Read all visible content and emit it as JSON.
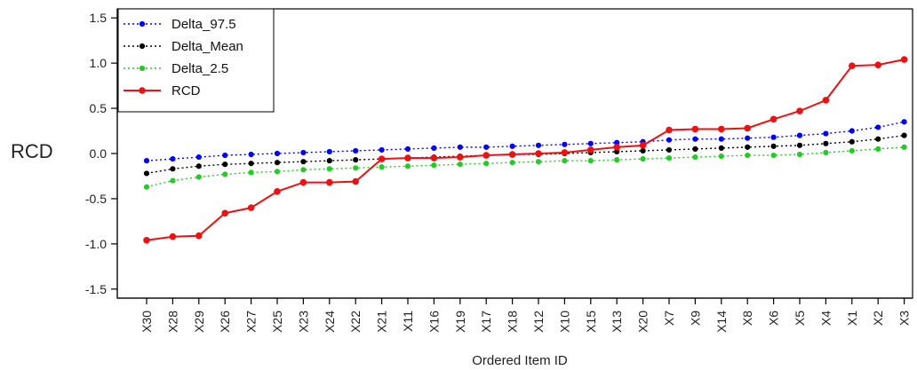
{
  "chart_data": {
    "type": "line",
    "xlabel": "Ordered Item ID",
    "ylabel": "RCD",
    "ylim": [
      -1.6,
      1.6
    ],
    "yticks": [
      -1.5,
      -1.0,
      -0.5,
      0.0,
      0.5,
      1.0,
      1.5
    ],
    "ytick_labels": [
      "-1.5",
      "-1.0",
      "-0.5",
      "0.0",
      "0.5",
      "1.0",
      "1.5"
    ],
    "grid": false,
    "legend_position": "top-left",
    "categories": [
      "X30",
      "X28",
      "X29",
      "X26",
      "X27",
      "X25",
      "X23",
      "X24",
      "X22",
      "X21",
      "X11",
      "X16",
      "X19",
      "X17",
      "X18",
      "X12",
      "X10",
      "X15",
      "X13",
      "X20",
      "X7",
      "X9",
      "X14",
      "X8",
      "X6",
      "X5",
      "X4",
      "X1",
      "X2",
      "X3"
    ],
    "series": [
      {
        "name": "Delta_97.5",
        "color": "#0000ff",
        "style": "dotted",
        "values": [
          -0.08,
          -0.06,
          -0.04,
          -0.02,
          -0.01,
          0.0,
          0.01,
          0.02,
          0.03,
          0.04,
          0.05,
          0.06,
          0.07,
          0.07,
          0.08,
          0.09,
          0.1,
          0.11,
          0.12,
          0.13,
          0.15,
          0.16,
          0.16,
          0.17,
          0.18,
          0.2,
          0.22,
          0.25,
          0.29,
          0.35
        ]
      },
      {
        "name": "Delta_Mean",
        "color": "#000000",
        "style": "dotted",
        "values": [
          -0.22,
          -0.17,
          -0.14,
          -0.12,
          -0.11,
          -0.1,
          -0.09,
          -0.08,
          -0.07,
          -0.06,
          -0.05,
          -0.04,
          -0.03,
          -0.02,
          -0.01,
          -0.01,
          0.0,
          0.01,
          0.02,
          0.03,
          0.04,
          0.05,
          0.06,
          0.07,
          0.08,
          0.09,
          0.11,
          0.13,
          0.16,
          0.2
        ]
      },
      {
        "name": "Delta_2.5",
        "color": "#22cc22",
        "style": "dotted",
        "values": [
          -0.37,
          -0.3,
          -0.26,
          -0.23,
          -0.21,
          -0.2,
          -0.18,
          -0.17,
          -0.16,
          -0.15,
          -0.14,
          -0.13,
          -0.12,
          -0.11,
          -0.1,
          -0.09,
          -0.08,
          -0.08,
          -0.07,
          -0.06,
          -0.05,
          -0.04,
          -0.03,
          -0.02,
          -0.02,
          -0.01,
          0.01,
          0.03,
          0.05,
          0.07
        ]
      },
      {
        "name": "RCD",
        "color": "#ee1111",
        "style": "solid",
        "values": [
          -0.96,
          -0.92,
          -0.91,
          -0.66,
          -0.6,
          -0.42,
          -0.32,
          -0.32,
          -0.31,
          -0.06,
          -0.05,
          -0.05,
          -0.04,
          -0.02,
          -0.01,
          0.0,
          0.01,
          0.04,
          0.07,
          0.09,
          0.26,
          0.27,
          0.27,
          0.28,
          0.38,
          0.47,
          0.59,
          0.97,
          0.98,
          1.04
        ]
      }
    ]
  }
}
